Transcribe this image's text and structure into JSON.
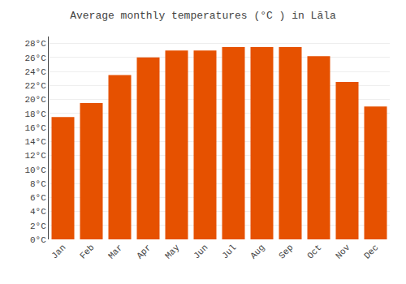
{
  "chart_data": {
    "type": "bar",
    "title": "Average monthly temperatures (°C ) in Lāla",
    "categories": [
      "Jan",
      "Feb",
      "Mar",
      "Apr",
      "May",
      "Jun",
      "Jul",
      "Aug",
      "Sep",
      "Oct",
      "Nov",
      "Dec"
    ],
    "values": [
      17.5,
      19.5,
      23.5,
      26.0,
      27.0,
      27.0,
      27.5,
      27.5,
      27.5,
      26.2,
      22.5,
      19.0
    ],
    "color": "#E65100",
    "ylim": [
      0,
      29
    ],
    "yticks": [
      {
        "value": 0,
        "label": "0°C"
      },
      {
        "value": 2,
        "label": "2°C"
      },
      {
        "value": 4,
        "label": "4°C"
      },
      {
        "value": 6,
        "label": "6°C"
      },
      {
        "value": 8,
        "label": "8°C"
      },
      {
        "value": 10,
        "label": "10°C"
      },
      {
        "value": 12,
        "label": "12°C"
      },
      {
        "value": 14,
        "label": "14°C"
      },
      {
        "value": 16,
        "label": "16°C"
      },
      {
        "value": 18,
        "label": "18°C"
      },
      {
        "value": 20,
        "label": "20°C"
      },
      {
        "value": 22,
        "label": "22°C"
      },
      {
        "value": 24,
        "label": "24°C"
      },
      {
        "value": 26,
        "label": "26°C"
      },
      {
        "value": 28,
        "label": "28°C"
      }
    ],
    "grid": true
  }
}
